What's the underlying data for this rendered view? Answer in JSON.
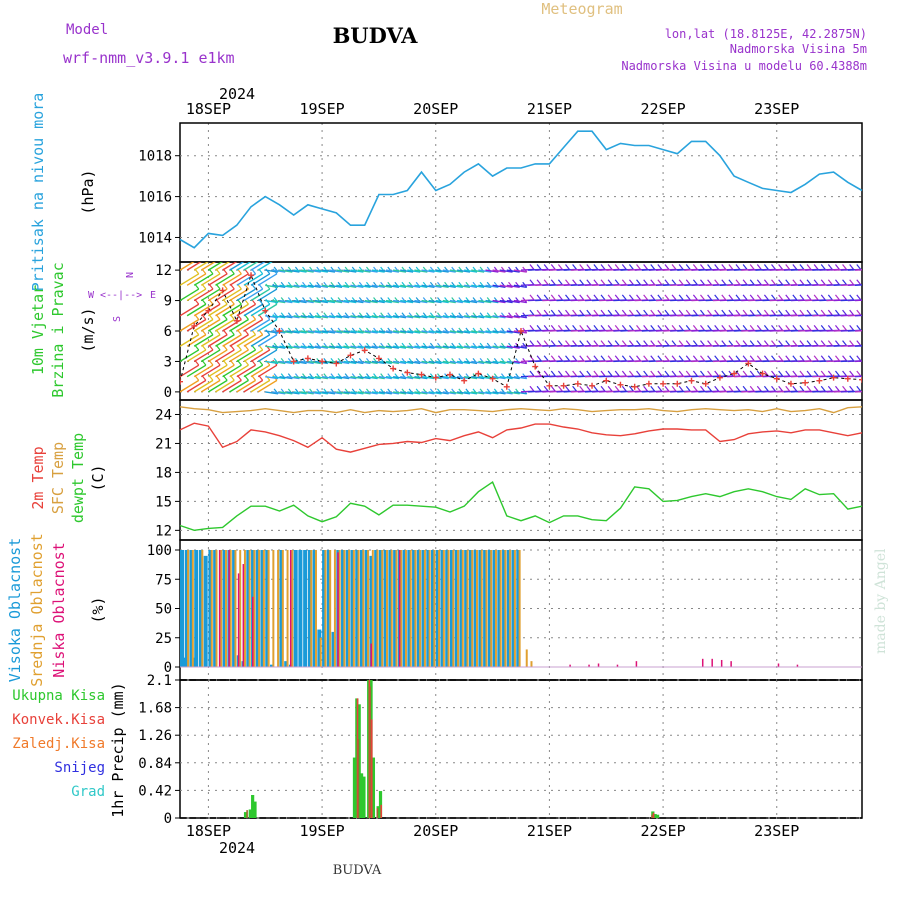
{
  "header": {
    "title": "BUDVA",
    "meteogram_label": "Meteogram",
    "model_label": "Model",
    "model_name": "wrf-nmm_v3.9.1  e1km",
    "location": "lon,lat (18.8125E, 42.2875N)",
    "elevation": "Nadmorska Visina 5m",
    "model_elevation": "Nadmorska Visina u modelu 60.4388m",
    "footer": "BUDVA",
    "watermark": "made by Angel"
  },
  "colors": {
    "pressure": "#29a3dd",
    "temp2m": "#e8413a",
    "sfc_temp": "#d8a040",
    "dewpt": "#2ec82e",
    "visoka": "#1a9ad8",
    "srednja": "#e0a030",
    "niska": "#dd1177",
    "ukupna": "#2ec82e",
    "konvek": "#e8413a",
    "zaledj": "#f07a2a",
    "snijeg": "#3030e0",
    "grad": "#30c8c8",
    "wind_speed": "#e8413a",
    "model_text": "#9933cc",
    "meteogram_text": "#e0c080"
  },
  "x_axis": {
    "year": "2024",
    "days": [
      "18SEP",
      "19SEP",
      "20SEP",
      "21SEP",
      "22SEP",
      "23SEP"
    ]
  },
  "panels": {
    "pressure": {
      "ylabels": [
        "Pritisak na nivou mora"
      ],
      "unit": "(hPa)",
      "ticks": [
        "1014",
        "1016",
        "1018"
      ]
    },
    "wind": {
      "ylabels": [
        "10m Vjetar",
        "Brzina i Pravac"
      ],
      "unit": "(m/s)",
      "ticks": [
        "0",
        "3",
        "6",
        "9",
        "12"
      ],
      "compass": {
        "n": "N",
        "s": "S",
        "w": "W",
        "e": "E",
        "arrows": "<--|-->"
      }
    },
    "temp": {
      "ylabels": [
        "2m Temp",
        "SFC Temp",
        "dewpt Temp"
      ],
      "unit": "(C)",
      "ticks": [
        "12",
        "15",
        "18",
        "21",
        "24"
      ]
    },
    "cloud": {
      "ylabels": [
        "Visoka Oblacnost",
        "Srednja Oblacnost",
        "Niska Oblacnost"
      ],
      "unit": "(%)",
      "ticks": [
        "0",
        "25",
        "50",
        "75",
        "100"
      ]
    },
    "precip": {
      "legend": [
        "Ukupna Kisa",
        "Konvek.Kisa",
        "Zaledj.Kisa",
        "Snijeg",
        "Grad"
      ],
      "unit": "1hr Precip (mm)",
      "ticks": [
        "0",
        "0.42",
        "0.84",
        "1.26",
        "1.68",
        "2.1"
      ]
    }
  },
  "chart_data": {
    "type": "line",
    "x_unit": "hours from 2024-09-17 18:00 UTC",
    "day_ticks": {
      "18SEP": 6,
      "19SEP": 30,
      "20SEP": 54,
      "21SEP": 78,
      "22SEP": 102,
      "23SEP": 126
    },
    "pressure_hpa": {
      "ylim": [
        1012.8,
        1019.6
      ],
      "x": [
        0,
        3,
        6,
        9,
        12,
        15,
        18,
        21,
        24,
        27,
        30,
        33,
        36,
        39,
        42,
        45,
        48,
        51,
        54,
        57,
        60,
        63,
        66,
        69,
        72,
        75,
        78,
        81,
        84,
        87,
        90,
        93,
        96,
        99,
        102,
        105,
        108,
        111,
        114,
        117,
        120,
        123,
        126,
        129,
        132,
        135,
        138,
        141,
        144
      ],
      "y": [
        1013.9,
        1013.5,
        1014.2,
        1014.1,
        1014.6,
        1015.5,
        1016.0,
        1015.6,
        1015.1,
        1015.6,
        1015.4,
        1015.2,
        1014.6,
        1014.6,
        1016.1,
        1016.1,
        1016.3,
        1017.2,
        1016.3,
        1016.6,
        1017.2,
        1017.6,
        1017.0,
        1017.4,
        1017.4,
        1017.6,
        1017.6,
        1018.4,
        1019.2,
        1019.2,
        1018.3,
        1018.6,
        1018.5,
        1018.5,
        1018.3,
        1018.1,
        1018.7,
        1018.7,
        1018.0,
        1017.0,
        1016.7,
        1016.4,
        1016.3,
        1016.2,
        1016.6,
        1017.1,
        1017.2,
        1016.7,
        1016.3
      ]
    },
    "wind_speed_ms": {
      "ylim": [
        -0.8,
        12.8
      ],
      "x": [
        0,
        3,
        6,
        9,
        12,
        15,
        18,
        21,
        24,
        27,
        30,
        33,
        36,
        39,
        42,
        45,
        48,
        51,
        54,
        57,
        60,
        63,
        66,
        69,
        72,
        75,
        78,
        81,
        84,
        87,
        90,
        93,
        96,
        99,
        102,
        105,
        108,
        111,
        114,
        117,
        120,
        123,
        126,
        129,
        132,
        135,
        138,
        141,
        144
      ],
      "y": [
        1.0,
        6.5,
        8.0,
        10.0,
        7.0,
        11.5,
        8.0,
        6.0,
        3.0,
        3.3,
        3.0,
        2.8,
        3.6,
        4.1,
        3.3,
        2.3,
        1.9,
        1.7,
        1.4,
        1.7,
        1.1,
        1.8,
        1.3,
        0.5,
        6.0,
        2.5,
        0.6,
        0.6,
        0.8,
        0.6,
        1.1,
        0.7,
        0.5,
        0.8,
        0.8,
        0.8,
        1.1,
        0.8,
        1.4,
        1.8,
        2.8,
        1.8,
        1.3,
        0.8,
        0.9,
        1.1,
        1.4,
        1.3,
        1.2
      ]
    },
    "wind_barb_levels": [
      0.0,
      1.5,
      3.0,
      4.5,
      6.0,
      7.5,
      9.0,
      10.5,
      12.0
    ],
    "temp_c": {
      "ylim": [
        11.0,
        25.5
      ],
      "x": [
        0,
        3,
        6,
        9,
        12,
        15,
        18,
        21,
        24,
        27,
        30,
        33,
        36,
        39,
        42,
        45,
        48,
        51,
        54,
        57,
        60,
        63,
        66,
        69,
        72,
        75,
        78,
        81,
        84,
        87,
        90,
        93,
        96,
        99,
        102,
        105,
        108,
        111,
        114,
        117,
        120,
        123,
        126,
        129,
        132,
        135,
        138,
        141,
        144
      ],
      "t2m": [
        22.4,
        23.1,
        22.8,
        20.6,
        21.2,
        22.4,
        22.2,
        21.8,
        21.3,
        20.6,
        21.6,
        20.4,
        20.1,
        20.5,
        20.9,
        21.0,
        21.2,
        21.1,
        21.5,
        21.3,
        21.8,
        22.2,
        21.6,
        22.4,
        22.6,
        23.0,
        23.0,
        22.7,
        22.5,
        22.1,
        21.9,
        21.8,
        22.0,
        22.3,
        22.5,
        22.5,
        22.4,
        22.4,
        21.2,
        21.4,
        22.0,
        22.2,
        22.3,
        22.1,
        22.4,
        22.4,
        22.1,
        21.8,
        22.1
      ],
      "sfc": [
        24.8,
        24.6,
        24.5,
        24.2,
        24.3,
        24.4,
        24.6,
        24.4,
        24.2,
        24.4,
        24.4,
        24.2,
        24.5,
        24.2,
        24.4,
        24.3,
        24.4,
        24.6,
        24.2,
        24.5,
        24.5,
        24.4,
        24.3,
        24.5,
        24.6,
        24.5,
        24.4,
        24.6,
        24.5,
        24.3,
        24.4,
        24.5,
        24.5,
        24.6,
        24.4,
        24.3,
        24.5,
        24.6,
        24.5,
        24.4,
        24.5,
        24.3,
        24.6,
        24.3,
        24.4,
        24.6,
        24.2,
        24.7,
        24.8
      ],
      "dewpt": [
        12.5,
        12.0,
        12.2,
        12.3,
        13.5,
        14.5,
        14.5,
        14.0,
        14.6,
        13.5,
        12.9,
        13.4,
        14.8,
        14.5,
        13.6,
        14.6,
        14.6,
        14.5,
        14.4,
        13.9,
        14.5,
        16.0,
        17.0,
        13.5,
        13.0,
        13.5,
        12.8,
        13.5,
        13.5,
        13.1,
        13.0,
        14.3,
        16.5,
        16.3,
        15.0,
        15.1,
        15.5,
        15.8,
        15.5,
        16.0,
        16.3,
        16.0,
        15.5,
        15.2,
        16.3,
        15.7,
        15.8,
        14.2,
        14.5
      ]
    },
    "cloud_pct": {
      "ylim": [
        0,
        100
      ],
      "bar_spacing_h": 0.5,
      "bar_spacing_h_note": "",
      "visoka": {
        "start_h": 0,
        "end_h": 72,
        "values_h": [
          [
            0,
            100
          ],
          [
            1,
            100
          ],
          [
            2,
            100
          ],
          [
            3,
            100
          ],
          [
            4,
            100
          ],
          [
            5,
            95
          ],
          [
            6,
            100
          ],
          [
            7,
            100
          ],
          [
            9,
            100
          ],
          [
            10,
            100
          ],
          [
            11,
            100
          ],
          [
            14,
            100
          ],
          [
            15,
            100
          ],
          [
            16,
            100
          ],
          [
            17,
            100
          ],
          [
            18,
            100
          ],
          [
            21,
            100
          ],
          [
            24,
            100
          ],
          [
            25,
            100
          ],
          [
            26,
            100
          ],
          [
            27,
            100
          ],
          [
            28,
            100
          ],
          [
            29,
            32
          ],
          [
            30,
            100
          ],
          [
            31,
            100
          ],
          [
            32,
            30
          ],
          [
            33,
            100
          ],
          [
            34,
            100
          ],
          [
            35,
            100
          ],
          [
            36,
            100
          ],
          [
            37,
            100
          ],
          [
            38,
            100
          ],
          [
            39,
            100
          ],
          [
            40,
            95
          ],
          [
            41,
            100
          ],
          [
            42,
            100
          ],
          [
            43,
            100
          ],
          [
            44,
            100
          ],
          [
            45,
            100
          ],
          [
            46,
            100
          ],
          [
            47,
            100
          ],
          [
            48,
            100
          ],
          [
            49,
            100
          ],
          [
            50,
            100
          ],
          [
            51,
            100
          ],
          [
            52,
            100
          ],
          [
            53,
            100
          ],
          [
            54,
            100
          ],
          [
            55,
            100
          ],
          [
            56,
            100
          ],
          [
            57,
            100
          ],
          [
            58,
            100
          ],
          [
            59,
            100
          ],
          [
            60,
            100
          ],
          [
            61,
            100
          ],
          [
            62,
            100
          ],
          [
            63,
            100
          ],
          [
            64,
            100
          ],
          [
            65,
            100
          ],
          [
            66,
            100
          ],
          [
            67,
            100
          ],
          [
            68,
            100
          ],
          [
            69,
            100
          ],
          [
            70,
            100
          ],
          [
            71,
            100
          ],
          [
            0.5,
            8
          ],
          [
            2.5,
            8
          ],
          [
            12,
            10
          ],
          [
            13,
            5
          ],
          [
            19,
            2
          ],
          [
            22,
            5
          ],
          [
            23,
            2
          ]
        ]
      },
      "srednja": {
        "values_h": [
          [
            1.5,
            100
          ],
          [
            2.5,
            100
          ],
          [
            4.5,
            100
          ],
          [
            6.5,
            100
          ],
          [
            7.5,
            100
          ],
          [
            8.5,
            100
          ],
          [
            9.5,
            100
          ],
          [
            10.5,
            100
          ],
          [
            11.5,
            100
          ],
          [
            12.5,
            100
          ],
          [
            13.5,
            100
          ],
          [
            14.5,
            100
          ],
          [
            15.5,
            100
          ],
          [
            16.5,
            100
          ],
          [
            17.5,
            100
          ],
          [
            18.5,
            100
          ],
          [
            19.5,
            100
          ],
          [
            20.5,
            100
          ],
          [
            21.5,
            100
          ],
          [
            22.5,
            100
          ],
          [
            23.5,
            100
          ],
          [
            27.5,
            100
          ],
          [
            28.5,
            100
          ],
          [
            29.5,
            25
          ],
          [
            30.5,
            100
          ],
          [
            31.5,
            100
          ],
          [
            32.5,
            100
          ],
          [
            33.5,
            100
          ],
          [
            34.5,
            100
          ],
          [
            35.5,
            100
          ],
          [
            36.5,
            100
          ],
          [
            37.5,
            100
          ],
          [
            38.5,
            100
          ],
          [
            39.5,
            100
          ],
          [
            40.5,
            100
          ],
          [
            41.5,
            100
          ],
          [
            42.5,
            100
          ],
          [
            43.5,
            100
          ],
          [
            44.5,
            100
          ],
          [
            45.5,
            100
          ],
          [
            46.5,
            100
          ],
          [
            47.5,
            100
          ],
          [
            48.5,
            100
          ],
          [
            49.5,
            100
          ],
          [
            50.5,
            100
          ],
          [
            51.5,
            100
          ],
          [
            52.5,
            100
          ],
          [
            53.5,
            100
          ],
          [
            54.5,
            100
          ],
          [
            55.5,
            100
          ],
          [
            56.5,
            100
          ],
          [
            57.5,
            100
          ],
          [
            58.5,
            100
          ],
          [
            59.5,
            100
          ],
          [
            60.5,
            100
          ],
          [
            61.5,
            100
          ],
          [
            62.5,
            100
          ],
          [
            63.5,
            100
          ],
          [
            64.5,
            100
          ],
          [
            65.5,
            100
          ],
          [
            66.5,
            100
          ],
          [
            67.5,
            100
          ],
          [
            68.5,
            100
          ],
          [
            69.5,
            100
          ],
          [
            70.5,
            100
          ],
          [
            71.5,
            100
          ],
          [
            73,
            15
          ],
          [
            74,
            5
          ]
        ]
      },
      "niska": {
        "values_h": [
          [
            8.0,
            100
          ],
          [
            10.0,
            100
          ],
          [
            12.0,
            80
          ],
          [
            13.0,
            88
          ],
          [
            15.0,
            60
          ],
          [
            23.0,
            100
          ],
          [
            33.0,
            98
          ],
          [
            40.0,
            20
          ],
          [
            46.0,
            100
          ],
          [
            82,
            2
          ],
          [
            86,
            2
          ],
          [
            88,
            3
          ],
          [
            92,
            2
          ],
          [
            96,
            5
          ],
          [
            110,
            7
          ],
          [
            112,
            7
          ],
          [
            114,
            6
          ],
          [
            116,
            5
          ],
          [
            126,
            3
          ],
          [
            130,
            2
          ]
        ]
      }
    },
    "precip_mm": {
      "ylim": [
        0,
        2.1
      ],
      "ukupna": [
        [
          13.5,
          0.09
        ],
        [
          14.5,
          0.13
        ],
        [
          15.0,
          0.35
        ],
        [
          15.5,
          0.25
        ],
        [
          36.5,
          0.92
        ],
        [
          37.0,
          1.82
        ],
        [
          37.5,
          1.73
        ],
        [
          38.0,
          0.68
        ],
        [
          38.5,
          0.63
        ],
        [
          39.5,
          2.1
        ],
        [
          40.0,
          2.1
        ],
        [
          40.5,
          0.92
        ],
        [
          41.5,
          0.18
        ],
        [
          42.0,
          0.41
        ],
        [
          99.5,
          0.1
        ],
        [
          100.0,
          0.06
        ],
        [
          100.5,
          0.05
        ]
      ],
      "konvek": [
        [
          36.5,
          0.0
        ],
        [
          37.0,
          1.82
        ],
        [
          38.0,
          0.0
        ],
        [
          39.5,
          2.1
        ],
        [
          40.0,
          1.5
        ],
        [
          42.0,
          0.2
        ],
        [
          99.5,
          0.08
        ]
      ],
      "zaledj": [
        [
          14.0,
          0.12
        ],
        [
          37.5,
          1.2
        ],
        [
          40.0,
          2.0
        ],
        [
          41.5,
          0.15
        ],
        [
          99.5,
          0.05
        ]
      ],
      "snijeg": [],
      "grad": []
    }
  }
}
